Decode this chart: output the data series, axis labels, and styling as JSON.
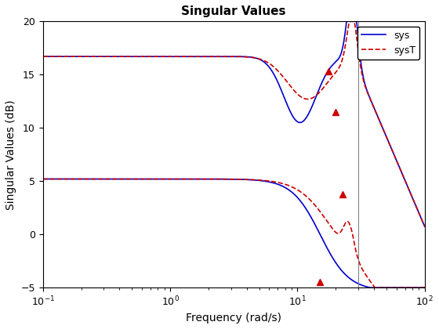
{
  "title": "Singular Values",
  "xlabel": "Frequency (rad/s)",
  "ylabel": "Singular Values (dB)",
  "xlim": [
    0.1,
    100
  ],
  "ylim": [
    -5,
    20
  ],
  "vline_x": 30,
  "legend_labels": [
    "sys",
    "sysT"
  ],
  "sys_color": "#0000CC",
  "sysT_color": "#CC0000",
  "marker_color": "#CC0000",
  "vline_color": "#808080",
  "background_color": "#FFFFFF",
  "marker_style": "^",
  "marker_size": 6,
  "sys_linewidth": 1.2,
  "sysT_linewidth": 1.2,
  "title_fontsize": 11,
  "label_fontsize": 10,
  "upper_flat": 16.7,
  "lower_flat": 5.2,
  "upper_sys_min": 10.5,
  "upper_sysT_min": 12.7,
  "vline_freq": 30.0,
  "marker_upper_freqs": [
    17.5,
    20.0
  ],
  "marker_upper_vals": [
    15.3,
    11.5
  ],
  "marker_lower_freqs": [
    15.0,
    22.5
  ],
  "marker_lower_vals": [
    -4.5,
    3.8
  ]
}
